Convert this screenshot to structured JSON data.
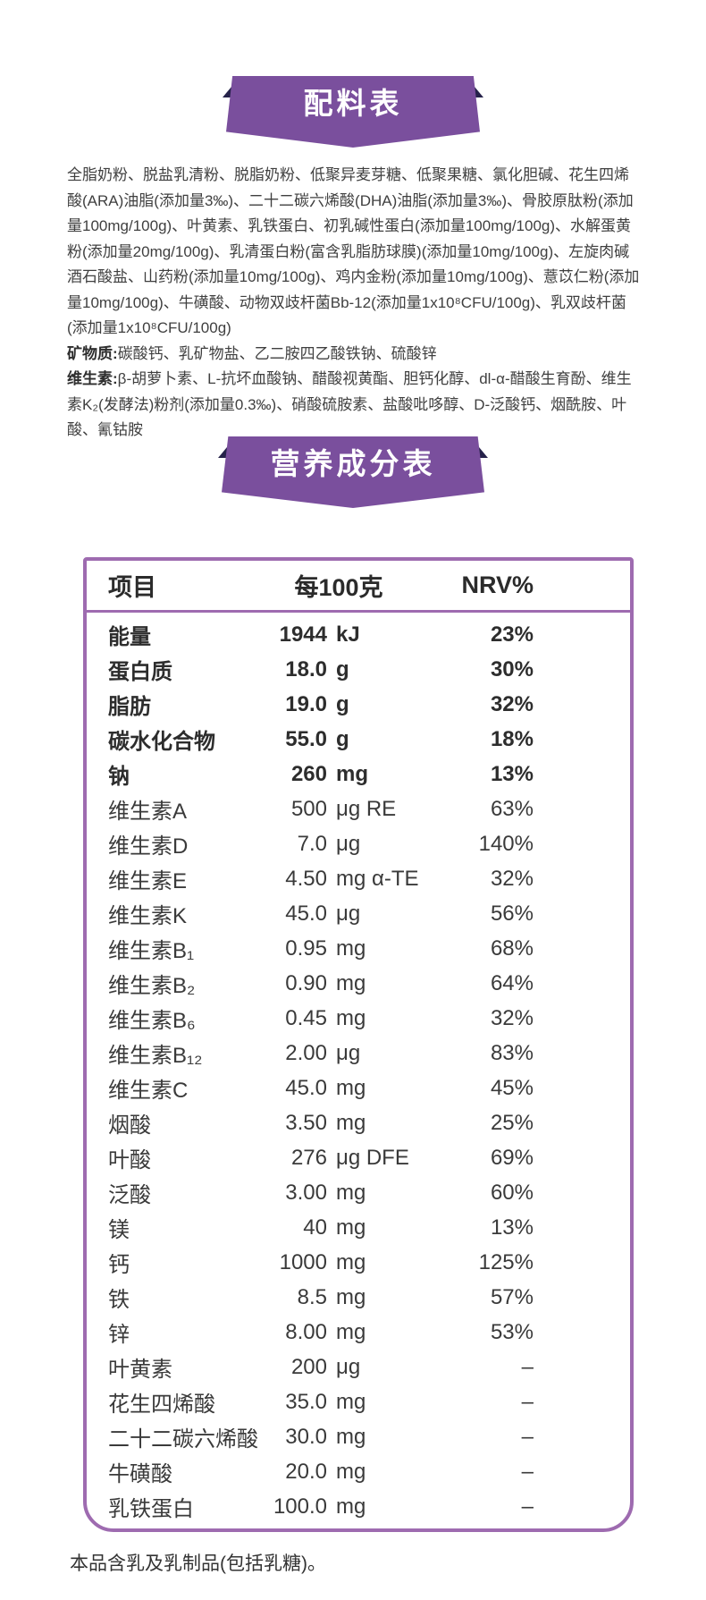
{
  "colors": {
    "banner_purple": "#7a4f9d",
    "banner_fold_dark": "#26224a",
    "table_border_purple": "#9e6bb0",
    "text_dark": "#3f3f3f"
  },
  "banners": {
    "ingredients_title": "配料表",
    "nutrition_title": "营养成分表"
  },
  "ingredients": {
    "main": "全脂奶粉、脱盐乳清粉、脱脂奶粉、低聚异麦芽糖、低聚果糖、氯化胆碱、花生四烯酸(ARA)油脂(添加量3‰)、二十二碳六烯酸(DHA)油脂(添加量3‰)、骨胶原肽粉(添加量100mg/100g)、叶黄素、乳铁蛋白、初乳碱性蛋白(添加量100mg/100g)、水解蛋黄粉(添加量20mg/100g)、乳清蛋白粉(富含乳脂肪球膜)(添加量10mg/100g)、左旋肉碱酒石酸盐、山药粉(添加量10mg/100g)、鸡内金粉(添加量10mg/100g)、薏苡仁粉(添加量10mg/100g)、牛磺酸、动物双歧杆菌Bb-12(添加量1x10⁸CFU/100g)、乳双歧杆菌(添加量1x10⁸CFU/100g)",
    "minerals_label": "矿物质:",
    "minerals": "碳酸钙、乳矿物盐、乙二胺四乙酸铁钠、硫酸锌",
    "vitamins_label": "维生素:",
    "vitamins": "β-胡萝卜素、L-抗坏血酸钠、醋酸视黄酯、胆钙化醇、dl-α-醋酸生育酚、维生素K₂(发酵法)粉剂(添加量0.3‰)、硝酸硫胺素、盐酸吡哆醇、D-泛酸钙、烟酰胺、叶酸、氰钴胺"
  },
  "nutrition_table": {
    "headers": [
      "项目",
      "每100克",
      "NRV%"
    ],
    "rows": [
      {
        "item": "能量",
        "value": "1944",
        "unit": "kJ",
        "nrv": "23%",
        "bold": true
      },
      {
        "item": "蛋白质",
        "value": "18.0",
        "unit": "g",
        "nrv": "30%",
        "bold": true
      },
      {
        "item": "脂肪",
        "value": "19.0",
        "unit": "g",
        "nrv": "32%",
        "bold": true
      },
      {
        "item": "碳水化合物",
        "value": "55.0",
        "unit": "g",
        "nrv": "18%",
        "bold": true
      },
      {
        "item": "钠",
        "value": "260",
        "unit": "mg",
        "nrv": "13%",
        "bold": true
      },
      {
        "item": "维生素A",
        "value": "500",
        "unit": "μg RE",
        "nrv": "63%",
        "bold": false
      },
      {
        "item": "维生素D",
        "value": "7.0",
        "unit": "μg",
        "nrv": "140%",
        "bold": false
      },
      {
        "item": "维生素E",
        "value": "4.50",
        "unit": "mg α-TE",
        "nrv": "32%",
        "bold": false
      },
      {
        "item": "维生素K",
        "value": "45.0",
        "unit": "μg",
        "nrv": "56%",
        "bold": false
      },
      {
        "item": "维生素B₁",
        "value": "0.95",
        "unit": "mg",
        "nrv": "68%",
        "bold": false
      },
      {
        "item": "维生素B₂",
        "value": "0.90",
        "unit": "mg",
        "nrv": "64%",
        "bold": false
      },
      {
        "item": "维生素B₆",
        "value": "0.45",
        "unit": "mg",
        "nrv": "32%",
        "bold": false
      },
      {
        "item": "维生素B₁₂",
        "value": "2.00",
        "unit": "μg",
        "nrv": "83%",
        "bold": false
      },
      {
        "item": "维生素C",
        "value": "45.0",
        "unit": "mg",
        "nrv": "45%",
        "bold": false
      },
      {
        "item": "烟酸",
        "value": "3.50",
        "unit": "mg",
        "nrv": "25%",
        "bold": false
      },
      {
        "item": "叶酸",
        "value": "276",
        "unit": "μg DFE",
        "nrv": "69%",
        "bold": false
      },
      {
        "item": "泛酸",
        "value": "3.00",
        "unit": "mg",
        "nrv": "60%",
        "bold": false
      },
      {
        "item": "镁",
        "value": "40",
        "unit": "mg",
        "nrv": "13%",
        "bold": false
      },
      {
        "item": "钙",
        "value": "1000",
        "unit": "mg",
        "nrv": "125%",
        "bold": false
      },
      {
        "item": "铁",
        "value": "8.5",
        "unit": "mg",
        "nrv": "57%",
        "bold": false
      },
      {
        "item": "锌",
        "value": "8.00",
        "unit": "mg",
        "nrv": "53%",
        "bold": false
      },
      {
        "item": "叶黄素",
        "value": "200",
        "unit": "μg",
        "nrv": "–",
        "bold": false
      },
      {
        "item": "花生四烯酸",
        "value": "35.0",
        "unit": "mg",
        "nrv": "–",
        "bold": false
      },
      {
        "item": "二十二碳六烯酸",
        "value": "30.0",
        "unit": "mg",
        "nrv": "–",
        "bold": false
      },
      {
        "item": "牛磺酸",
        "value": "20.0",
        "unit": "mg",
        "nrv": "–",
        "bold": false
      },
      {
        "item": "乳铁蛋白",
        "value": "100.0",
        "unit": "mg",
        "nrv": "–",
        "bold": false
      }
    ]
  },
  "footer": {
    "allergen_note": "本品含乳及乳制品(包括乳糖)。"
  }
}
